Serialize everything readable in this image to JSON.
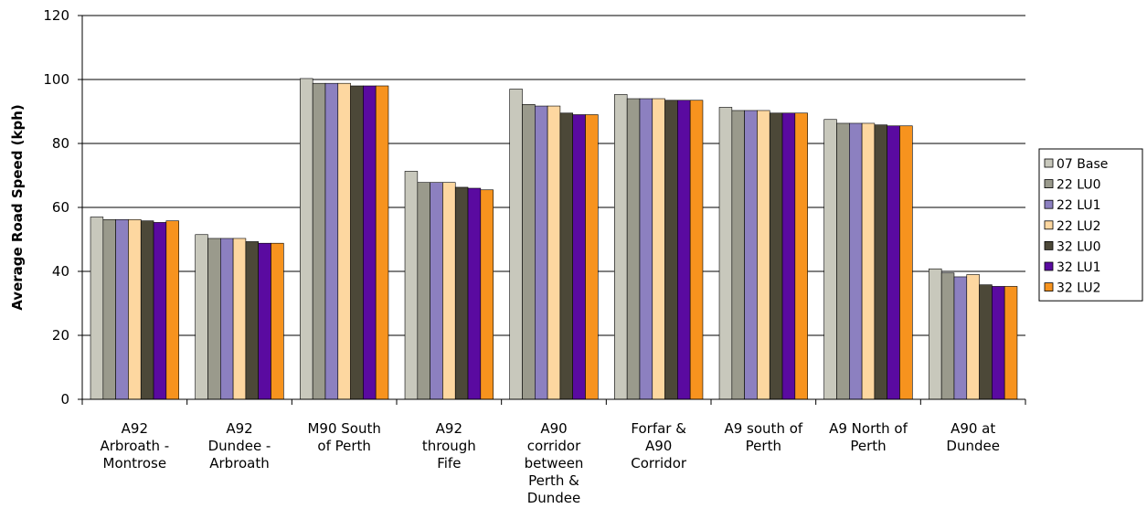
{
  "chart_data": {
    "type": "bar",
    "title": "",
    "xlabel": "",
    "ylabel": "Average Road Speed (kph)",
    "ylim": [
      0,
      120
    ],
    "yticks": [
      0,
      20,
      40,
      60,
      80,
      100,
      120
    ],
    "grid": true,
    "legend_position": "right",
    "categories": [
      "A92 Arbroath - Montrose",
      "A92 Dundee - Arbroath",
      "M90 South of Perth",
      "A92 through Fife",
      "A90 corridor between Perth & Dundee",
      "Forfar & A90 Corridor",
      "A9 south of Perth",
      "A9 North of Perth",
      "A90 at Dundee"
    ],
    "category_label_lines": [
      [
        "A92",
        "Arbroath -",
        "Montrose"
      ],
      [
        "A92",
        "Dundee -",
        "Arbroath"
      ],
      [
        "M90 South",
        "of Perth"
      ],
      [
        "A92",
        "through",
        "Fife"
      ],
      [
        "A90",
        "corridor",
        "between",
        "Perth &",
        "Dundee"
      ],
      [
        "Forfar &",
        "A90",
        "Corridor"
      ],
      [
        "A9 south of",
        "Perth"
      ],
      [
        "A9 North of",
        "Perth"
      ],
      [
        "A90 at",
        "Dundee"
      ]
    ],
    "series": [
      {
        "name": "07 Base",
        "color": "#C8C8BC",
        "values": [
          57.0,
          51.5,
          100.3,
          71.3,
          97.0,
          95.3,
          91.3,
          87.5,
          40.8
        ]
      },
      {
        "name": "22 LU0",
        "color": "#9A9A8C",
        "values": [
          56.2,
          50.3,
          98.8,
          67.8,
          92.2,
          94.0,
          90.3,
          86.3,
          39.5
        ]
      },
      {
        "name": "22 LU1",
        "color": "#8C80C0",
        "values": [
          56.2,
          50.3,
          98.8,
          67.8,
          91.7,
          94.0,
          90.3,
          86.3,
          38.3
        ]
      },
      {
        "name": "22 LU2",
        "color": "#FDD7A0",
        "values": [
          56.2,
          50.3,
          98.8,
          67.8,
          91.7,
          94.0,
          90.3,
          86.3,
          39.0
        ]
      },
      {
        "name": "32 LU0",
        "color": "#4C4838",
        "values": [
          55.8,
          49.3,
          98.0,
          66.3,
          89.5,
          93.5,
          89.5,
          85.8,
          35.8
        ]
      },
      {
        "name": "32 LU1",
        "color": "#5A0AA0",
        "values": [
          55.3,
          48.8,
          98.0,
          66.0,
          89.0,
          93.5,
          89.5,
          85.5,
          35.3
        ]
      },
      {
        "name": "32 LU2",
        "color": "#F7931E",
        "values": [
          55.8,
          48.8,
          98.0,
          65.5,
          89.0,
          93.5,
          89.5,
          85.5,
          35.3
        ]
      }
    ]
  }
}
